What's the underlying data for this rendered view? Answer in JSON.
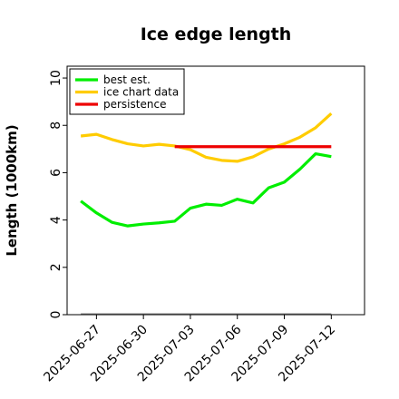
{
  "chart_data": {
    "type": "line",
    "title": "Ice edge length",
    "xlabel": "",
    "ylabel": "Length (1000km)",
    "ylim": [
      0,
      10.5
    ],
    "xlim": [
      "2025-06-25 03:00",
      "2025-07-14 03:00"
    ],
    "yticks": [
      0,
      2,
      4,
      6,
      8,
      10
    ],
    "xticks": [
      "2025-06-27",
      "2025-06-30",
      "2025-07-03",
      "2025-07-06",
      "2025-07-09",
      "2025-07-12"
    ],
    "grid": false,
    "legend_position": "top-left",
    "series": [
      {
        "name": "best est.",
        "color": "#00ee00",
        "x": [
          "2025-06-26",
          "2025-06-27",
          "2025-06-28",
          "2025-06-29",
          "2025-06-30",
          "2025-07-01",
          "2025-07-02",
          "2025-07-03",
          "2025-07-04",
          "2025-07-05",
          "2025-07-06",
          "2025-07-07",
          "2025-07-08",
          "2025-07-09",
          "2025-07-10",
          "2025-07-11",
          "2025-07-12"
        ],
        "values": [
          4.8,
          4.3,
          3.9,
          3.75,
          3.83,
          3.88,
          3.95,
          4.5,
          4.67,
          4.62,
          4.88,
          4.72,
          5.36,
          5.6,
          6.15,
          6.8,
          6.68
        ]
      },
      {
        "name": "ice chart data",
        "color": "#ffcc00",
        "x": [
          "2025-06-26",
          "2025-06-27",
          "2025-06-28",
          "2025-06-29",
          "2025-06-30",
          "2025-07-01",
          "2025-07-02",
          "2025-07-03",
          "2025-07-04",
          "2025-07-05",
          "2025-07-06",
          "2025-07-07",
          "2025-07-08",
          "2025-07-09",
          "2025-07-10",
          "2025-07-11",
          "2025-07-12"
        ],
        "values": [
          7.55,
          7.62,
          7.4,
          7.22,
          7.13,
          7.2,
          7.13,
          6.97,
          6.65,
          6.52,
          6.48,
          6.67,
          7.0,
          7.22,
          7.5,
          7.9,
          8.5
        ]
      },
      {
        "name": "persistence",
        "color": "#ee0000",
        "x": [
          "2025-07-02",
          "2025-07-12"
        ],
        "values": [
          7.1,
          7.1
        ]
      },
      {
        "name": "",
        "color": "#808080",
        "x": [
          "2025-06-26",
          "2025-07-12"
        ],
        "values": [
          0.03,
          0.03
        ]
      }
    ]
  }
}
